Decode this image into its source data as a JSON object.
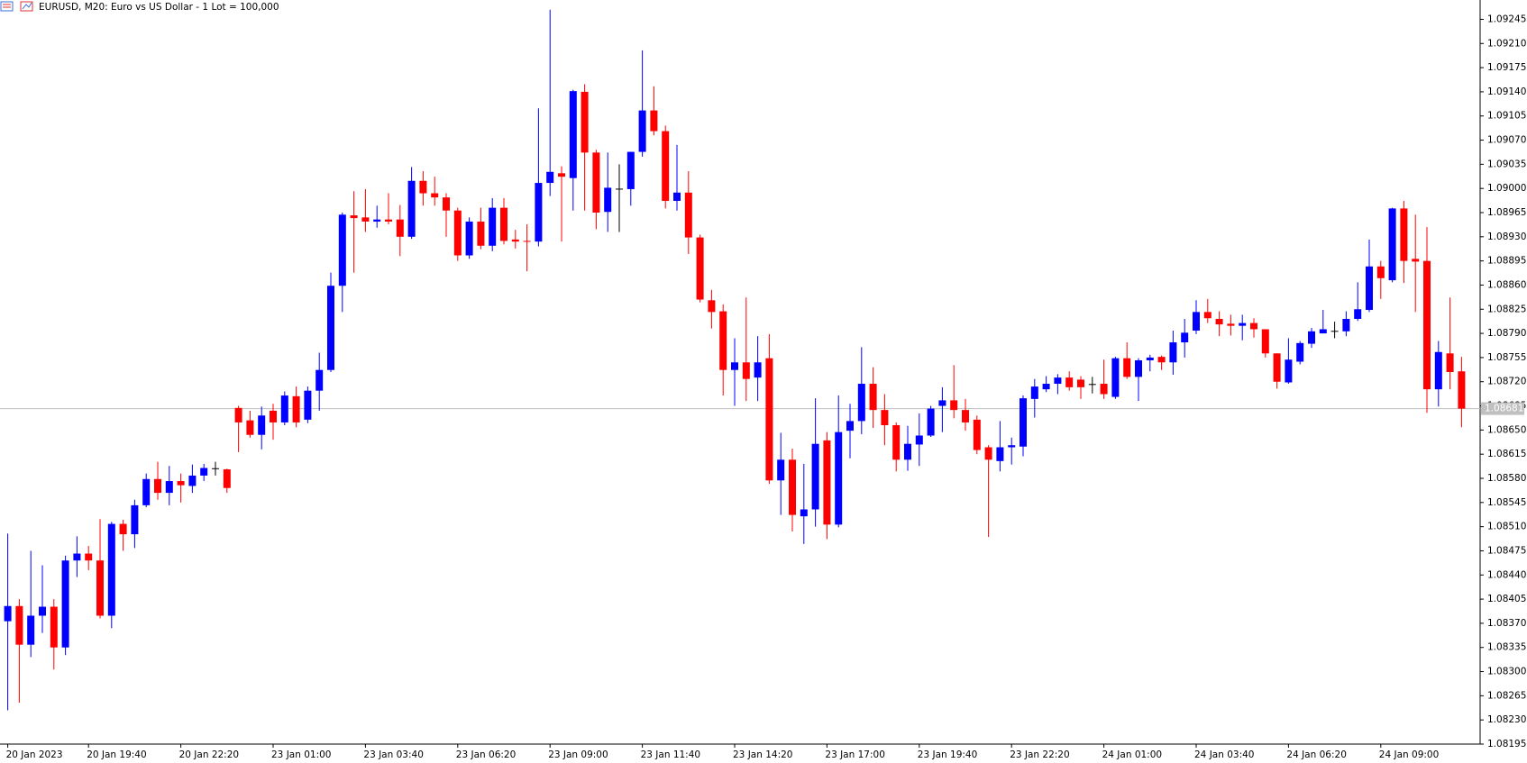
{
  "chart_data": {
    "type": "candlestick",
    "title": "EURUSD, M20:  Euro vs US Dollar - 1 Lot = 100,000",
    "up_color": "#0000ff",
    "down_color": "#ff0000",
    "doji_color": "#000000",
    "grid": false,
    "categories": [
      "20 Jan 2023",
      null,
      null,
      null,
      null,
      null,
      null,
      "20 Jan 19:40",
      null,
      null,
      null,
      null,
      null,
      null,
      null,
      "20 Jan 22:20",
      null,
      null,
      null,
      null,
      null,
      null,
      null,
      "23 Jan 01:00",
      null,
      null,
      null,
      null,
      null,
      null,
      null,
      "23 Jan 03:40",
      null,
      null,
      null,
      null,
      null,
      null,
      null,
      "23 Jan 06:20",
      null,
      null,
      null,
      null,
      null,
      null,
      null,
      "23 Jan 09:00",
      null,
      null,
      null,
      null,
      null,
      null,
      null,
      "23 Jan 11:40",
      null,
      null,
      null,
      null,
      null,
      null,
      null,
      "23 Jan 14:20",
      null,
      null,
      null,
      null,
      null,
      null,
      null,
      "23 Jan 17:00",
      null,
      null,
      null,
      null,
      null,
      null,
      null,
      "23 Jan 19:40",
      null,
      null,
      null,
      null,
      null,
      null,
      null,
      "23 Jan 22:20",
      null,
      null,
      null,
      null,
      null,
      null,
      null,
      "24 Jan 01:00",
      null,
      null,
      null,
      null,
      null,
      null,
      null,
      "24 Jan 03:40",
      null,
      null,
      null,
      null,
      null,
      null,
      null,
      "24 Jan 06:20",
      null,
      null,
      null,
      null,
      null,
      null,
      null,
      "24 Jan 09:00",
      null,
      null,
      null,
      null,
      null,
      null,
      null
    ],
    "open": [
      1.08373,
      1.08395,
      1.08339,
      1.08381,
      1.08394,
      1.08335,
      1.08461,
      1.08471,
      1.08461,
      1.08381,
      1.08514,
      1.08499,
      1.08541,
      1.08579,
      1.08559,
      1.08576,
      1.08569,
      1.08584,
      1.08594,
      1.08593,
      1.08682,
      1.08664,
      1.08643,
      1.08678,
      1.08661,
      1.08699,
      1.08665,
      1.08707,
      1.08737,
      1.08859,
      1.08961,
      1.08958,
      1.08952,
      1.08955,
      1.08955,
      1.0893,
      1.09011,
      1.08993,
      1.08987,
      1.08968,
      1.08903,
      1.08952,
      1.08917,
      1.08972,
      1.08926,
      1.08924,
      1.08923,
      1.09008,
      1.09022,
      1.09015,
      1.0914,
      1.09052,
      1.08966,
      1.08999,
      1.08999,
      1.09053,
      1.09113,
      1.09083,
      1.08982,
      1.08994,
      1.08929,
      1.08838,
      1.08822,
      1.08737,
      1.08748,
      1.08726,
      1.08754,
      1.08577,
      1.08607,
      1.08525,
      1.08535,
      1.08635,
      1.08513,
      1.08649,
      1.08663,
      1.08717,
      1.08679,
      1.08657,
      1.08607,
      1.08629,
      1.08642,
      1.08685,
      1.08693,
      1.08679,
      1.08665,
      1.08625,
      1.08605,
      1.08625,
      1.08626,
      1.08695,
      1.08709,
      1.08717,
      1.08726,
      1.08723,
      1.08716,
      1.08717,
      1.08698,
      1.08754,
      1.08727,
      1.08751,
      1.08756,
      1.08748,
      1.08777,
      1.08794,
      1.08821,
      1.08811,
      1.08804,
      1.08801,
      1.08805,
      1.08796,
      1.08761,
      1.08719,
      1.08749,
      1.08775,
      1.0879,
      1.08793,
      1.08793,
      1.08811,
      1.08824,
      1.08887,
      1.08867,
      1.08971,
      1.08898,
      1.08895,
      1.08709,
      1.08761,
      1.08735
    ],
    "high": [
      1.085,
      1.08405,
      1.08475,
      1.08454,
      1.08405,
      1.08468,
      1.08496,
      1.08482,
      1.08521,
      1.08517,
      1.0852,
      1.08549,
      1.08587,
      1.08604,
      1.08598,
      1.08587,
      1.086,
      1.08601,
      1.08604,
      1.08594,
      1.08685,
      1.08678,
      1.08684,
      1.08688,
      1.08706,
      1.08713,
      1.08713,
      1.08762,
      1.08878,
      1.08965,
      1.08996,
      1.08999,
      1.08975,
      1.08993,
      1.08976,
      1.09031,
      1.09025,
      1.09017,
      1.08993,
      1.08972,
      1.08958,
      1.08972,
      1.08986,
      1.08986,
      1.0894,
      1.08948,
      1.09116,
      1.09259,
      1.09032,
      1.09143,
      1.09151,
      1.09056,
      1.09052,
      1.09035,
      1.09053,
      1.092,
      1.09148,
      1.09091,
      1.09063,
      1.09025,
      1.08933,
      1.08853,
      1.08832,
      1.08783,
      1.08842,
      1.08786,
      1.08789,
      1.08646,
      1.08623,
      1.08601,
      1.08696,
      1.08647,
      1.087,
      1.08688,
      1.0877,
      1.08741,
      1.08702,
      1.08661,
      1.08656,
      1.08674,
      1.08685,
      1.08712,
      1.08744,
      1.08695,
      1.08671,
      1.08628,
      1.08663,
      1.08639,
      1.087,
      1.08724,
      1.08728,
      1.08731,
      1.08735,
      1.08728,
      1.08727,
      1.08752,
      1.08756,
      1.08777,
      1.08754,
      1.08759,
      1.08758,
      1.08794,
      1.08811,
      1.08838,
      1.0884,
      1.08822,
      1.08817,
      1.08817,
      1.08812,
      1.08796,
      1.08761,
      1.08783,
      1.08779,
      1.08798,
      1.08824,
      1.08807,
      1.08822,
      1.08864,
      1.08926,
      1.08895,
      1.08972,
      1.08982,
      1.08962,
      1.08944,
      1.08779,
      1.08842,
      1.08756
    ],
    "low": [
      1.08244,
      1.08255,
      1.08321,
      1.08356,
      1.08303,
      1.08324,
      1.08437,
      1.08447,
      1.08377,
      1.08363,
      1.08475,
      1.08479,
      1.08538,
      1.08549,
      1.08541,
      1.08545,
      1.08559,
      1.08576,
      1.08584,
      1.08559,
      1.08618,
      1.08639,
      1.08622,
      1.08636,
      1.08657,
      1.08654,
      1.0866,
      1.08678,
      1.08734,
      1.08821,
      1.08878,
      1.08937,
      1.08943,
      1.08948,
      1.08902,
      1.08927,
      1.08975,
      1.08975,
      1.0893,
      1.08895,
      1.08898,
      1.08912,
      1.08909,
      1.08919,
      1.08913,
      1.0888,
      1.08916,
      1.08989,
      1.08923,
      1.08968,
      1.08968,
      1.08941,
      1.08937,
      1.08937,
      1.08975,
      1.09046,
      1.09077,
      1.08971,
      1.08968,
      1.08905,
      1.08835,
      1.08797,
      1.087,
      1.08685,
      1.08692,
      1.08692,
      1.08572,
      1.08527,
      1.08503,
      1.08485,
      1.0851,
      1.08492,
      1.08509,
      1.08609,
      1.08644,
      1.08653,
      1.08628,
      1.0859,
      1.08591,
      1.08598,
      1.0864,
      1.08647,
      1.08667,
      1.08649,
      1.08615,
      1.08495,
      1.0859,
      1.086,
      1.08612,
      1.08668,
      1.08705,
      1.08702,
      1.08707,
      1.08695,
      1.08703,
      1.08695,
      1.08695,
      1.08724,
      1.08692,
      1.08735,
      1.08737,
      1.0873,
      1.08755,
      1.08789,
      1.08805,
      1.08786,
      1.08787,
      1.0878,
      1.08784,
      1.08755,
      1.0871,
      1.08717,
      1.08745,
      1.08769,
      1.0879,
      1.08783,
      1.08786,
      1.08808,
      1.08821,
      1.0884,
      1.08864,
      1.08863,
      1.08821,
      1.08675,
      1.08684,
      1.08709,
      1.08654
    ],
    "close": [
      1.08395,
      1.08339,
      1.08381,
      1.08394,
      1.08335,
      1.08461,
      1.08471,
      1.08461,
      1.08381,
      1.08514,
      1.08499,
      1.08541,
      1.08579,
      1.08559,
      1.08576,
      1.0857,
      1.08584,
      1.08595,
      1.08594,
      1.08566,
      1.08661,
      1.08643,
      1.08671,
      1.08661,
      1.087,
      1.08661,
      1.08707,
      1.08737,
      1.08859,
      1.08962,
      1.08957,
      1.08952,
      1.08955,
      1.08952,
      1.0893,
      1.09011,
      1.08993,
      1.08987,
      1.08968,
      1.08903,
      1.08952,
      1.08917,
      1.08972,
      1.08924,
      1.08923,
      1.08923,
      1.09008,
      1.09024,
      1.09017,
      1.09141,
      1.09052,
      1.08965,
      1.09001,
      1.08999,
      1.09053,
      1.09113,
      1.09083,
      1.08982,
      1.08994,
      1.08929,
      1.08839,
      1.08821,
      1.08737,
      1.08748,
      1.08724,
      1.08748,
      1.08577,
      1.08607,
      1.08527,
      1.08535,
      1.0863,
      1.08513,
      1.08647,
      1.08663,
      1.08717,
      1.08679,
      1.08657,
      1.08607,
      1.0863,
      1.08642,
      1.08681,
      1.08693,
      1.08679,
      1.08661,
      1.08621,
      1.08607,
      1.08625,
      1.08628,
      1.08696,
      1.08713,
      1.08717,
      1.08726,
      1.08712,
      1.08712,
      1.08716,
      1.08702,
      1.08754,
      1.08727,
      1.08751,
      1.08755,
      1.08748,
      1.08777,
      1.08791,
      1.08821,
      1.08812,
      1.08803,
      1.08801,
      1.08805,
      1.08796,
      1.08761,
      1.0872,
      1.08752,
      1.08776,
      1.08793,
      1.08796,
      1.08793,
      1.08811,
      1.08825,
      1.08887,
      1.0887,
      1.08971,
      1.08895,
      1.08894,
      1.08709,
      1.08763,
      1.08734,
      1.08681
    ],
    "last_price": 1.08681,
    "ylim": [
      1.08195,
      1.09273
    ],
    "yticks": [
      1.08195,
      {
        "value": 1.0823,
        "label": "1.08230"
      },
      1.08265,
      {
        "value": 1.083,
        "label": "1.08300"
      },
      1.08335,
      {
        "value": 1.0837,
        "label": "1.08370"
      },
      1.08405,
      {
        "value": 1.0844,
        "label": "1.08440"
      },
      1.08475,
      {
        "value": 1.0851,
        "label": "1.08510"
      },
      1.08545,
      {
        "value": 1.0858,
        "label": "1.08580"
      },
      1.08615,
      {
        "value": 1.0865,
        "label": "1.08650"
      },
      1.08685,
      {
        "value": 1.0872,
        "label": "1.08720"
      },
      1.08755,
      {
        "value": 1.0879,
        "label": "1.08790"
      },
      1.08825,
      {
        "value": 1.0886,
        "label": "1.08860"
      },
      1.08895,
      {
        "value": 1.0893,
        "label": "1.08930"
      },
      1.08965,
      {
        "value": 1.09,
        "label": "1.09000"
      },
      1.09035,
      {
        "value": 1.0907,
        "label": "1.09070"
      },
      1.09105,
      {
        "value": 1.0914,
        "label": "1.09140"
      },
      1.09175,
      {
        "value": 1.0921,
        "label": "1.09210"
      },
      1.09245
    ]
  }
}
